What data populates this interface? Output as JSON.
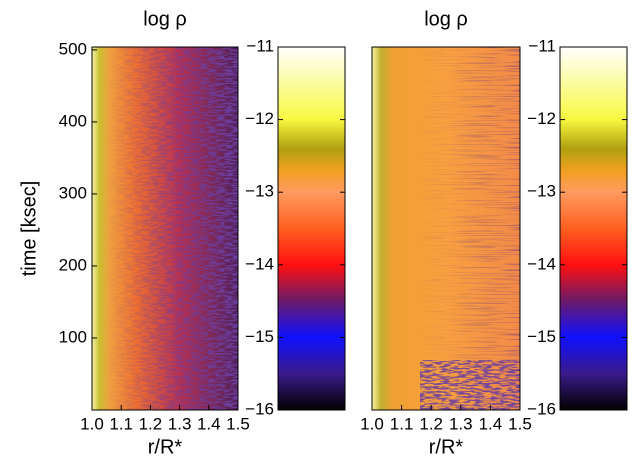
{
  "chart_data": [
    {
      "type": "heatmap",
      "title": "log ρ",
      "xlabel": "r/R*",
      "ylabel": "time [ksec]",
      "xlim": [
        1,
        1.5
      ],
      "xticks": [
        {
          "value": 1,
          "label": "1.0"
        },
        1.1,
        1.2,
        1.3,
        1.4,
        1.5
      ],
      "ylim": [
        0,
        504
      ],
      "yticks": [
        100,
        200,
        300,
        400,
        500
      ],
      "colorbar": {
        "lim": [
          -16,
          -11
        ],
        "ticks": [
          {
            "value": -11,
            "label": "−11"
          },
          {
            "value": -12,
            "label": "−12"
          },
          {
            "value": -13,
            "label": "−13"
          },
          {
            "value": -14,
            "label": "−14"
          },
          {
            "value": -15,
            "label": "−15"
          },
          {
            "value": -16,
            "label": "−16"
          }
        ],
        "colormap": [
          {
            "value": -16,
            "color": "#000000"
          },
          {
            "value": -15.5,
            "color": "#3a1a8a"
          },
          {
            "value": -15,
            "color": "#1010ff"
          },
          {
            "value": -14.5,
            "color": "#6a1a6a"
          },
          {
            "value": -14,
            "color": "#ff1010"
          },
          {
            "value": -13.5,
            "color": "#ff6020"
          },
          {
            "value": -13,
            "color": "#ff9a60"
          },
          {
            "value": -12.7,
            "color": "#f0a020"
          },
          {
            "value": -12.4,
            "color": "#b0a010"
          },
          {
            "value": -12,
            "color": "#f8f840"
          },
          {
            "value": -11,
            "color": "#ffffff"
          }
        ]
      }
    },
    {
      "type": "heatmap",
      "title": "log ρ",
      "xlabel": "r/R*",
      "xlim": [
        1,
        1.5
      ],
      "xticks": [
        {
          "value": 1,
          "label": "1.0"
        },
        1.1,
        1.2,
        1.3,
        1.4,
        1.5
      ],
      "ylim": [
        0,
        504
      ],
      "colorbar": {
        "lim": [
          -16,
          -11
        ],
        "ticks": [
          {
            "value": -11,
            "label": "−11"
          },
          {
            "value": -12,
            "label": "−12"
          },
          {
            "value": -13,
            "label": "−13"
          },
          {
            "value": -14,
            "label": "−14"
          },
          {
            "value": -15,
            "label": "−15"
          },
          {
            "value": -16,
            "label": "−16"
          }
        ],
        "colormap": [
          {
            "value": -16,
            "color": "#000000"
          },
          {
            "value": -15.5,
            "color": "#3a1a8a"
          },
          {
            "value": -15,
            "color": "#1010ff"
          },
          {
            "value": -14.5,
            "color": "#6a1a6a"
          },
          {
            "value": -14,
            "color": "#ff1010"
          },
          {
            "value": -13.5,
            "color": "#ff6020"
          },
          {
            "value": -13,
            "color": "#ff9a60"
          },
          {
            "value": -12.7,
            "color": "#f0a020"
          },
          {
            "value": -12.4,
            "color": "#b0a010"
          },
          {
            "value": -12,
            "color": "#f8f840"
          },
          {
            "value": -11,
            "color": "#ffffff"
          }
        ]
      }
    }
  ]
}
